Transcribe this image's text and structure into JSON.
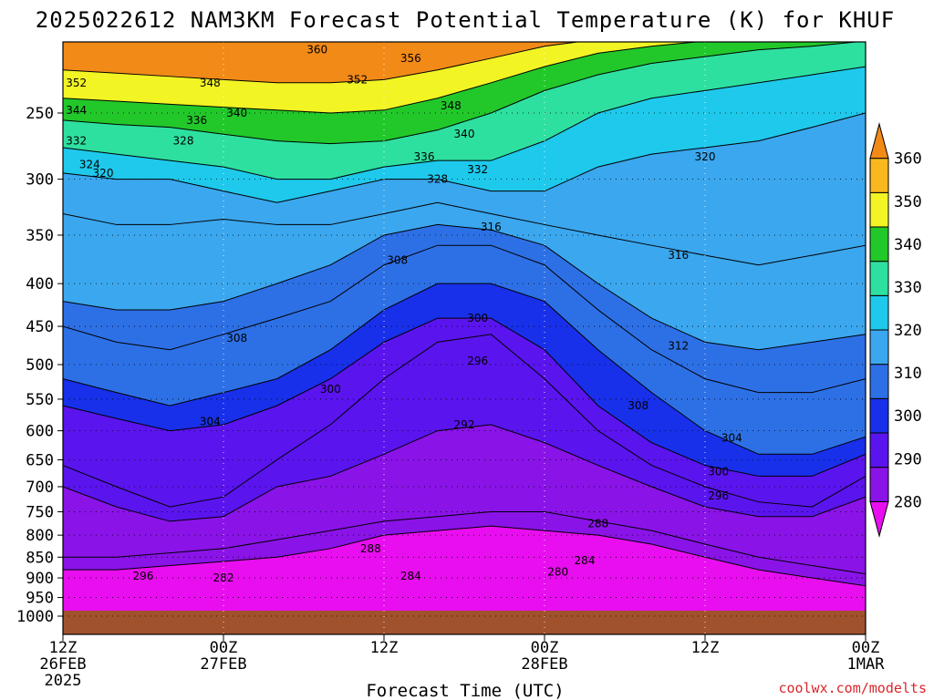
{
  "chart_data": {
    "type": "heatmap",
    "title": "2025022612 NAM3KM Forecast Potential Temperature (K) for KHUF",
    "xlabel": "Forecast Time (UTC)",
    "ylabel": "",
    "x_ticks": [
      {
        "line1": "12Z",
        "line2": "26FEB",
        "line3": "2025",
        "hour": 0
      },
      {
        "line1": "00Z",
        "line2": "27FEB",
        "line3": "",
        "hour": 12
      },
      {
        "line1": "12Z",
        "line2": "",
        "line3": "",
        "hour": 24
      },
      {
        "line1": "00Z",
        "line2": "28FEB",
        "line3": "",
        "hour": 36
      },
      {
        "line1": "12Z",
        "line2": "",
        "line3": "",
        "hour": 48
      },
      {
        "line1": "00Z",
        "line2": "1MAR",
        "line3": "",
        "hour": 60
      }
    ],
    "xlim": [
      0,
      60
    ],
    "y_ticks": [
      250,
      300,
      350,
      400,
      450,
      500,
      550,
      600,
      650,
      700,
      750,
      800,
      850,
      900,
      950,
      1000
    ],
    "ylim": [
      1000,
      200
    ],
    "y_scale": "log-pressure",
    "colorbar": {
      "levels": [
        280,
        290,
        300,
        310,
        320,
        330,
        340,
        350,
        360
      ],
      "colors": [
        "#e80ef0",
        "#8a13e8",
        "#5a14ee",
        "#1830ea",
        "#2d70e6",
        "#3ba7ee",
        "#1ec9ec",
        "#2ee0a0",
        "#22c82a",
        "#f2f424",
        "#f9b81e",
        "#f28a18"
      ]
    },
    "ground_color": "#a0522d",
    "isentropes": [
      {
        "theta": 284,
        "p": [
          880,
          880,
          870,
          860,
          850,
          830,
          800,
          790,
          780,
          790,
          800,
          820,
          850,
          880,
          900,
          920
        ]
      },
      {
        "theta": 288,
        "p": [
          850,
          850,
          840,
          830,
          810,
          790,
          770,
          760,
          750,
          750,
          770,
          790,
          820,
          850,
          870,
          890
        ]
      },
      {
        "theta": 292,
        "p": [
          700,
          740,
          770,
          760,
          700,
          680,
          640,
          600,
          590,
          620,
          660,
          700,
          740,
          760,
          760,
          720
        ]
      },
      {
        "theta": 296,
        "p": [
          660,
          700,
          740,
          720,
          650,
          590,
          520,
          470,
          460,
          520,
          600,
          660,
          700,
          730,
          740,
          680
        ]
      },
      {
        "theta": 300,
        "p": [
          560,
          580,
          600,
          590,
          560,
          520,
          470,
          440,
          440,
          480,
          560,
          620,
          660,
          680,
          680,
          640
        ]
      },
      {
        "theta": 304,
        "p": [
          520,
          540,
          560,
          540,
          520,
          480,
          430,
          400,
          400,
          420,
          480,
          540,
          600,
          640,
          640,
          610
        ]
      },
      {
        "theta": 308,
        "p": [
          450,
          470,
          480,
          460,
          440,
          420,
          380,
          360,
          360,
          380,
          430,
          480,
          520,
          540,
          540,
          520
        ]
      },
      {
        "theta": 312,
        "p": [
          420,
          430,
          430,
          420,
          400,
          380,
          350,
          340,
          345,
          360,
          400,
          440,
          470,
          480,
          470,
          460
        ]
      },
      {
        "theta": 316,
        "p": [
          330,
          340,
          340,
          335,
          340,
          340,
          330,
          320,
          330,
          340,
          350,
          360,
          370,
          380,
          370,
          360
        ]
      },
      {
        "theta": 320,
        "p": [
          295,
          300,
          300,
          310,
          320,
          310,
          300,
          300,
          310,
          310,
          290,
          280,
          275,
          270,
          260,
          250
        ]
      },
      {
        "theta": 328,
        "p": [
          275,
          280,
          285,
          290,
          300,
          300,
          290,
          285,
          285,
          270,
          250,
          240,
          235,
          230,
          225,
          220
        ]
      },
      {
        "theta": 336,
        "p": [
          255,
          258,
          260,
          265,
          270,
          272,
          270,
          262,
          250,
          235,
          225,
          218,
          214,
          210,
          208,
          205
        ]
      },
      {
        "theta": 344,
        "p": [
          240,
          242,
          244,
          246,
          248,
          250,
          248,
          240,
          230,
          220,
          212,
          208,
          205,
          203,
          202,
          201
        ]
      },
      {
        "theta": 352,
        "p": [
          222,
          224,
          226,
          228,
          230,
          230,
          228,
          222,
          215,
          208,
          204,
          202,
          201,
          201,
          201,
          201
        ]
      }
    ],
    "contour_labels": [
      {
        "text": "360",
        "hour": 19,
        "p": 210
      },
      {
        "text": "356",
        "hour": 26,
        "p": 215
      },
      {
        "text": "352",
        "hour": 1,
        "p": 230
      },
      {
        "text": "348",
        "hour": 11,
        "p": 230
      },
      {
        "text": "352",
        "hour": 22,
        "p": 228
      },
      {
        "text": "348",
        "hour": 29,
        "p": 245
      },
      {
        "text": "344",
        "hour": 1,
        "p": 248
      },
      {
        "text": "336",
        "hour": 10,
        "p": 255
      },
      {
        "text": "340",
        "hour": 13,
        "p": 250
      },
      {
        "text": "340",
        "hour": 30,
        "p": 265
      },
      {
        "text": "332",
        "hour": 1,
        "p": 270
      },
      {
        "text": "328",
        "hour": 9,
        "p": 270
      },
      {
        "text": "336",
        "hour": 27,
        "p": 282
      },
      {
        "text": "332",
        "hour": 31,
        "p": 292
      },
      {
        "text": "324",
        "hour": 2,
        "p": 288
      },
      {
        "text": "320",
        "hour": 3,
        "p": 295
      },
      {
        "text": "328",
        "hour": 28,
        "p": 300
      },
      {
        "text": "320",
        "hour": 48,
        "p": 282
      },
      {
        "text": "316",
        "hour": 32,
        "p": 342
      },
      {
        "text": "316",
        "hour": 46,
        "p": 370
      },
      {
        "text": "308",
        "hour": 25,
        "p": 375
      },
      {
        "text": "300",
        "hour": 31,
        "p": 440
      },
      {
        "text": "308",
        "hour": 13,
        "p": 465
      },
      {
        "text": "312",
        "hour": 46,
        "p": 475
      },
      {
        "text": "296",
        "hour": 31,
        "p": 495
      },
      {
        "text": "300",
        "hour": 20,
        "p": 535
      },
      {
        "text": "308",
        "hour": 43,
        "p": 560
      },
      {
        "text": "304",
        "hour": 11,
        "p": 585
      },
      {
        "text": "292",
        "hour": 30,
        "p": 590
      },
      {
        "text": "304",
        "hour": 50,
        "p": 612
      },
      {
        "text": "300",
        "hour": 49,
        "p": 672
      },
      {
        "text": "296",
        "hour": 49,
        "p": 718
      },
      {
        "text": "288",
        "hour": 40,
        "p": 775
      },
      {
        "text": "288",
        "hour": 23,
        "p": 830
      },
      {
        "text": "284",
        "hour": 39,
        "p": 858
      },
      {
        "text": "296",
        "hour": 6,
        "p": 895
      },
      {
        "text": "284",
        "hour": 26,
        "p": 895
      },
      {
        "text": "282",
        "hour": 12,
        "p": 900
      },
      {
        "text": "280",
        "hour": 37,
        "p": 885
      }
    ]
  },
  "credit": "coolwx.com/modelts"
}
